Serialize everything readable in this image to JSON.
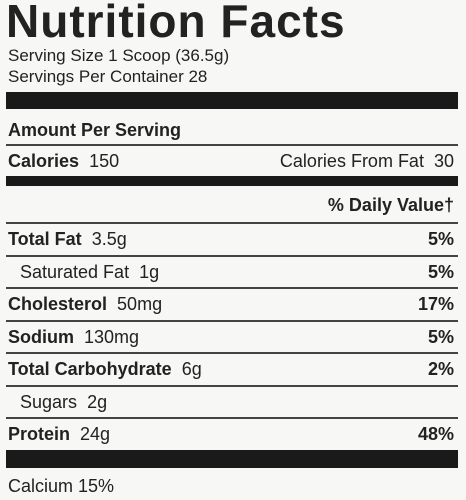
{
  "header": {
    "title": "Nutrition Facts",
    "serving_size": "Serving Size 1 Scoop (36.5g)",
    "servings_per_container": "Servings Per Container 28"
  },
  "amount_per_serving": "Amount Per Serving",
  "calories": {
    "label": "Calories",
    "value": "150",
    "from_fat_label": "Calories From Fat",
    "from_fat": "30"
  },
  "daily_value_header": "% Daily Value†",
  "rows": [
    {
      "label": "Total Fat",
      "amount": "3.5g",
      "dv": "5%",
      "bold": true,
      "indent": false
    },
    {
      "label": "Saturated Fat",
      "amount": "1g",
      "dv": "5%",
      "bold": false,
      "indent": true
    },
    {
      "label": "Cholesterol",
      "amount": "50mg",
      "dv": "17%",
      "bold": true,
      "indent": false
    },
    {
      "label": "Sodium",
      "amount": "130mg",
      "dv": "5%",
      "bold": true,
      "indent": false
    },
    {
      "label": "Total Carbohydrate",
      "amount": "6g",
      "dv": "2%",
      "bold": true,
      "indent": false
    },
    {
      "label": "Sugars",
      "amount": "2g",
      "bold": false,
      "indent": true
    },
    {
      "label": "Protein",
      "amount": "24g",
      "dv": "48%",
      "bold": true,
      "indent": false
    }
  ],
  "footer": {
    "label": "Calcium",
    "value": "15%"
  }
}
